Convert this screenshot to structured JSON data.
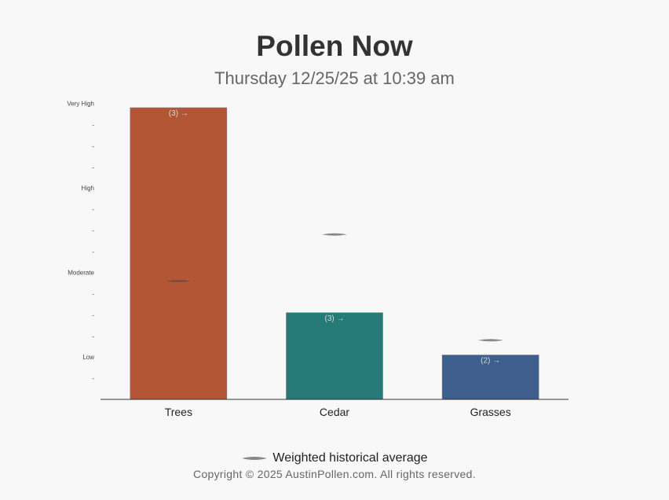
{
  "header": {
    "title": "Pollen Now",
    "subtitle": "Thursday 12/25/25 at 10:39 am"
  },
  "chart_data": {
    "type": "bar",
    "categories": [
      "Trees",
      "Cedar",
      "Grasses"
    ],
    "values": [
      13.8,
      4.1,
      2.1
    ],
    "historical_average": [
      5.6,
      7.8,
      2.8
    ],
    "bar_labels": [
      "(3) →",
      "(3) →",
      "(2) →"
    ],
    "bar_colors": [
      "#b35636",
      "#267a78",
      "#3e5f8e"
    ],
    "ylim": [
      0,
      13.8
    ],
    "yticks": [
      {
        "value": 1,
        "label": "-"
      },
      {
        "value": 2,
        "label": "Low"
      },
      {
        "value": 3,
        "label": "-"
      },
      {
        "value": 4,
        "label": "-"
      },
      {
        "value": 5,
        "label": "-"
      },
      {
        "value": 6,
        "label": "Moderate"
      },
      {
        "value": 7,
        "label": "-"
      },
      {
        "value": 8,
        "label": "-"
      },
      {
        "value": 9,
        "label": "-"
      },
      {
        "value": 10,
        "label": "High"
      },
      {
        "value": 11,
        "label": "-"
      },
      {
        "value": 12,
        "label": "-"
      },
      {
        "value": 13,
        "label": "-"
      },
      {
        "value": 14,
        "label": "Very High"
      }
    ],
    "legend": {
      "label": "Weighted historical average",
      "marker": "lens-line",
      "placement": "bottom-center"
    },
    "grid": false
  },
  "colors": {
    "background": "#f8f8f8",
    "average_marker": "#888888",
    "axis": "#333333"
  },
  "footer": {
    "copyright": "Copyright © 2025 AustinPollen.com.  All rights reserved."
  }
}
